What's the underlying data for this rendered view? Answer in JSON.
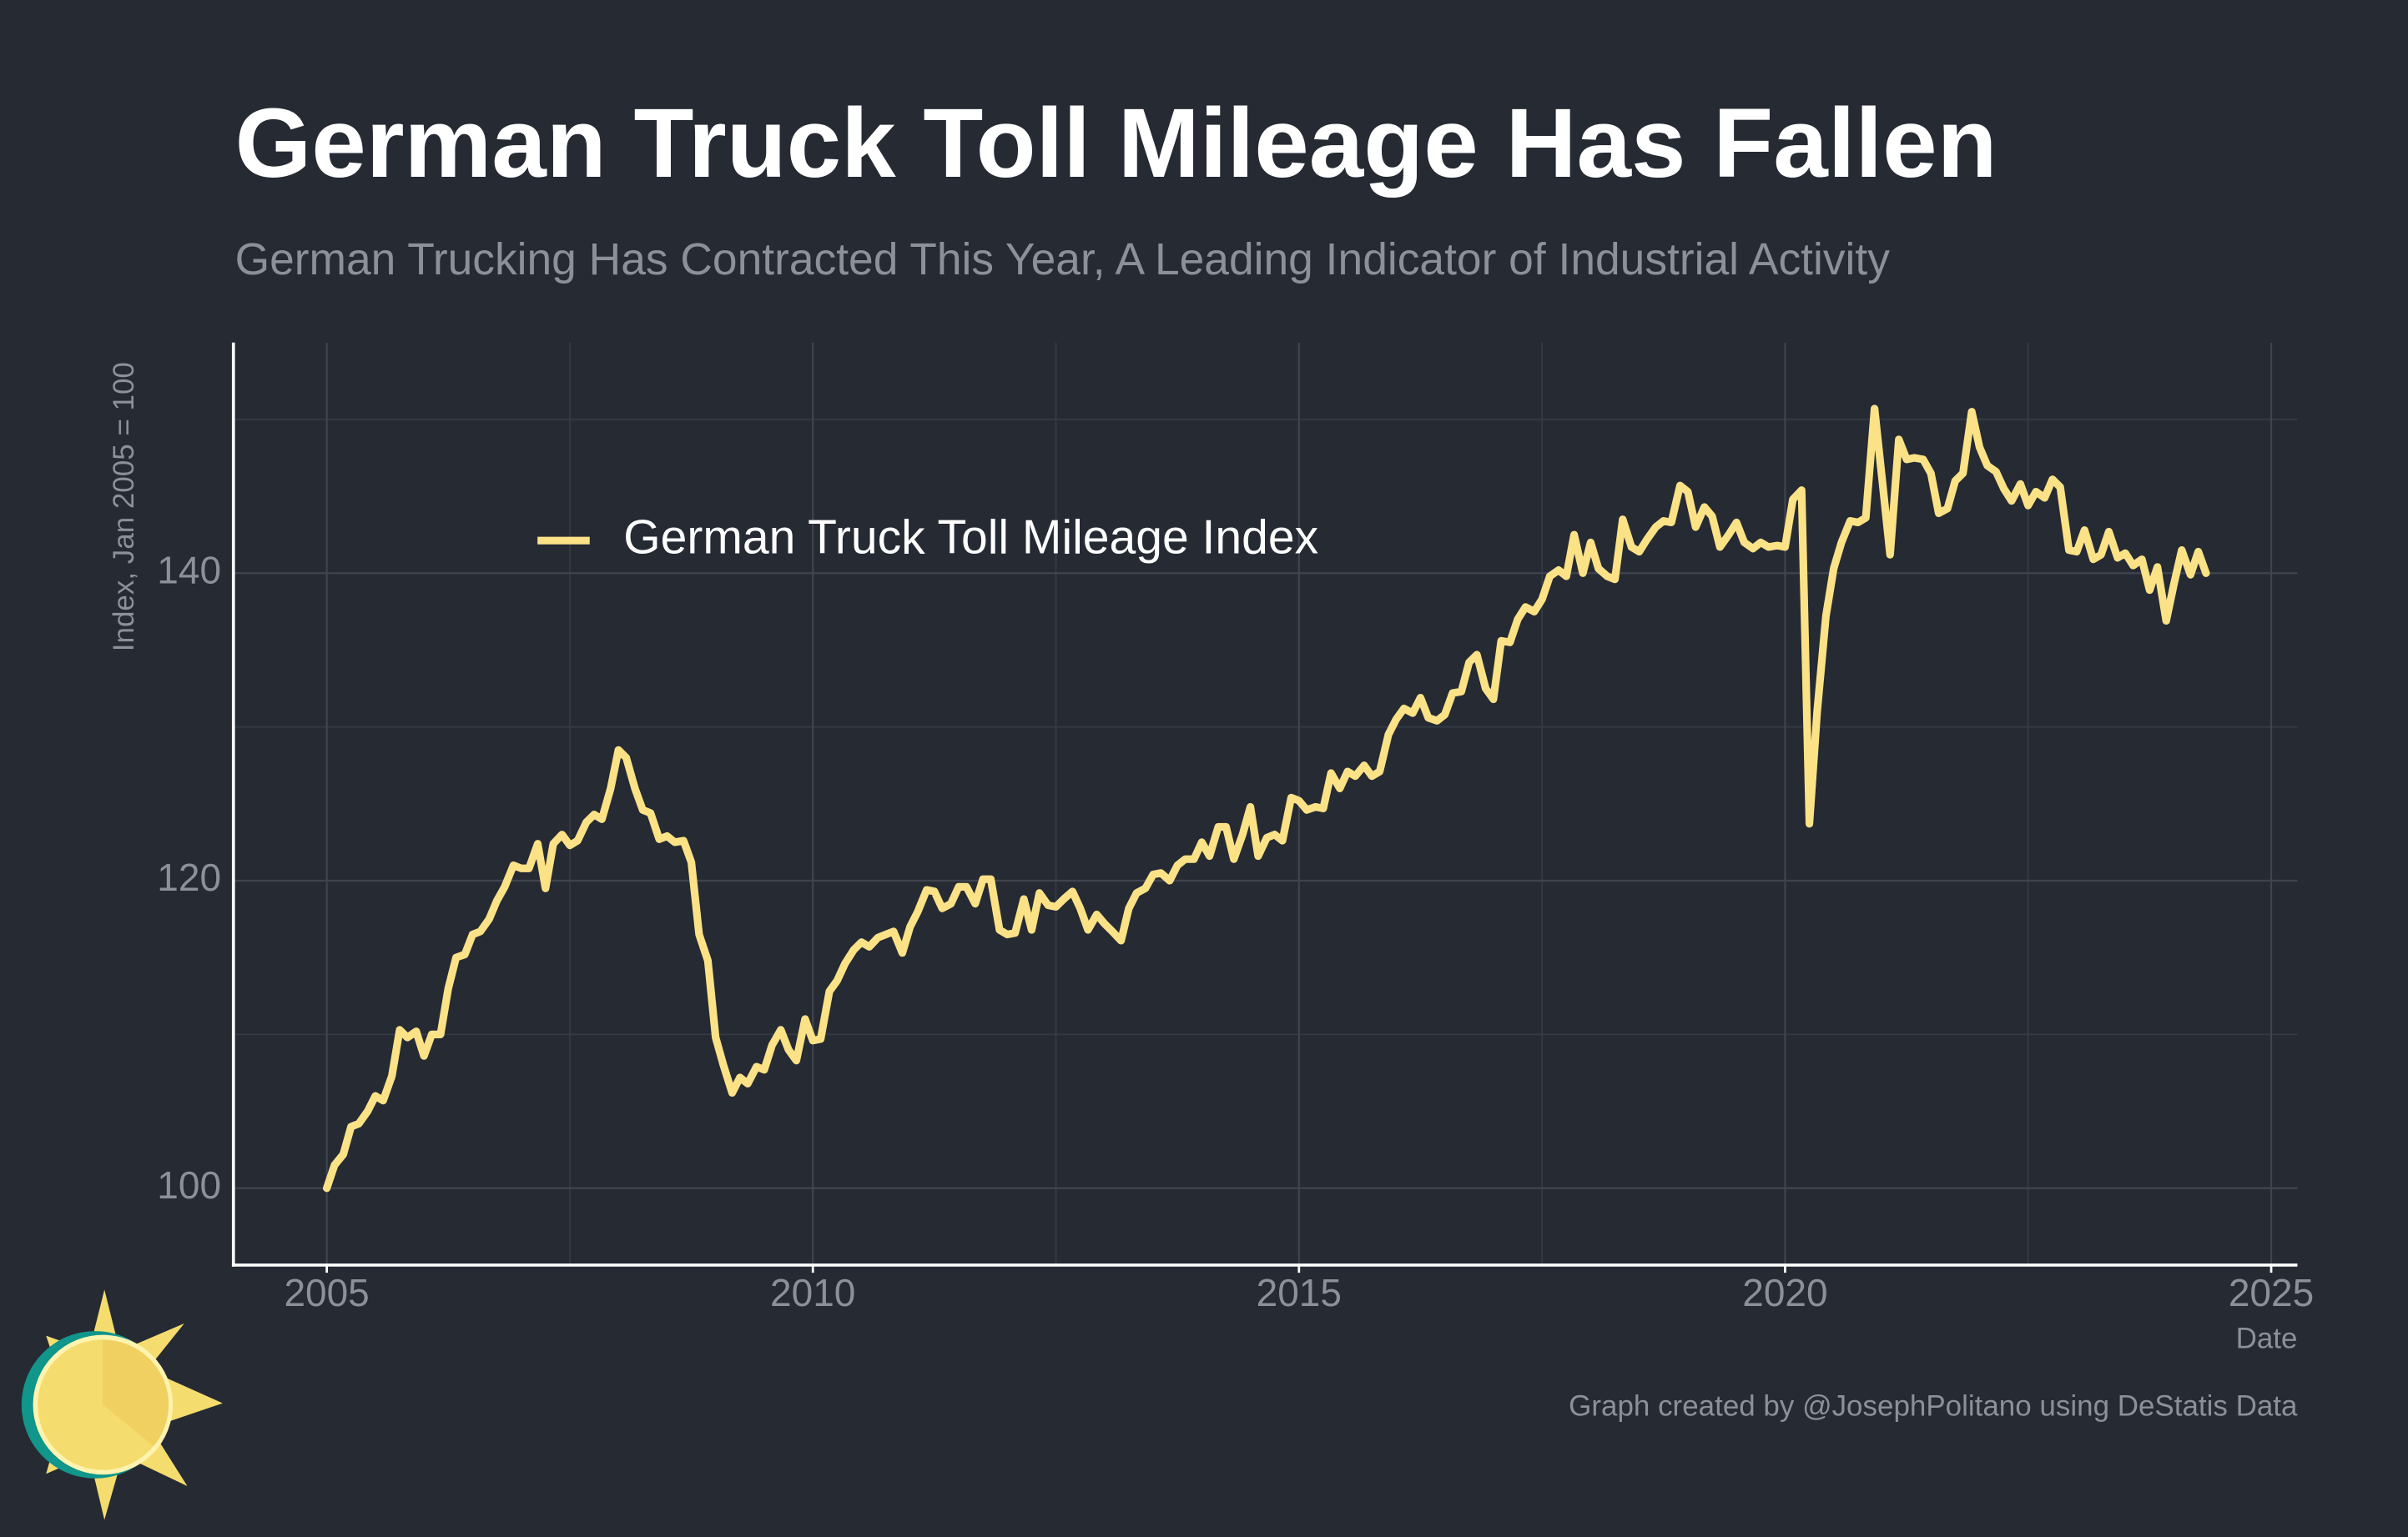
{
  "chart_data": {
    "type": "line",
    "title": "German Truck Toll Mileage Has Fallen",
    "subtitle": "German Trucking Has Contracted This Year, A Leading Indicator of Industrial Activity",
    "y_label": "Index, Jan 2005 = 100",
    "x_label": "Date",
    "caption": "Graph created by @JosephPolitano using DeStatis Data",
    "xlim": [
      2004.04,
      2025.27
    ],
    "ylim": [
      95,
      155
    ],
    "xticks": [
      2005,
      2010,
      2015,
      2020,
      2025
    ],
    "yticks": [
      100,
      120,
      140
    ],
    "x_minor_grid": [
      2007.5,
      2012.5,
      2017.5,
      2022.5
    ],
    "y_minor_grid": [
      110,
      130,
      150
    ],
    "grid": true,
    "legend": "top-left",
    "x": [
      2005.0,
      2005.08,
      2005.17,
      2005.25,
      2005.33,
      2005.42,
      2005.5,
      2005.58,
      2005.67,
      2005.75,
      2005.83,
      2005.92,
      2006.0,
      2006.08,
      2006.17,
      2006.25,
      2006.33,
      2006.42,
      2006.5,
      2006.58,
      2006.67,
      2006.75,
      2006.83,
      2006.92,
      2007.0,
      2007.08,
      2007.17,
      2007.25,
      2007.33,
      2007.42,
      2007.5,
      2007.58,
      2007.67,
      2007.75,
      2007.83,
      2007.92,
      2008.0,
      2008.08,
      2008.17,
      2008.25,
      2008.33,
      2008.42,
      2008.5,
      2008.58,
      2008.67,
      2008.75,
      2008.83,
      2008.92,
      2009.0,
      2009.08,
      2009.17,
      2009.25,
      2009.33,
      2009.42,
      2009.5,
      2009.58,
      2009.67,
      2009.75,
      2009.83,
      2009.92,
      2010.0,
      2010.08,
      2010.17,
      2010.25,
      2010.33,
      2010.42,
      2010.5,
      2010.58,
      2010.67,
      2010.75,
      2010.83,
      2010.92,
      2011.0,
      2011.08,
      2011.17,
      2011.25,
      2011.33,
      2011.42,
      2011.5,
      2011.58,
      2011.67,
      2011.75,
      2011.83,
      2011.92,
      2012.0,
      2012.08,
      2012.17,
      2012.25,
      2012.33,
      2012.42,
      2012.5,
      2012.58,
      2012.67,
      2012.75,
      2012.83,
      2012.92,
      2013.0,
      2013.08,
      2013.17,
      2013.25,
      2013.33,
      2013.42,
      2013.5,
      2013.58,
      2013.67,
      2013.75,
      2013.83,
      2013.92,
      2014.0,
      2014.08,
      2014.17,
      2014.25,
      2014.33,
      2014.42,
      2014.5,
      2014.58,
      2014.67,
      2014.75,
      2014.83,
      2014.92,
      2015.0,
      2015.08,
      2015.17,
      2015.25,
      2015.33,
      2015.42,
      2015.5,
      2015.58,
      2015.67,
      2015.75,
      2015.83,
      2015.92,
      2016.0,
      2016.08,
      2016.17,
      2016.25,
      2016.33,
      2016.42,
      2016.5,
      2016.58,
      2016.67,
      2016.75,
      2016.83,
      2016.92,
      2017.0,
      2017.08,
      2017.17,
      2017.25,
      2017.33,
      2017.42,
      2017.5,
      2017.58,
      2017.67,
      2017.75,
      2017.83,
      2017.92,
      2018.0,
      2018.08,
      2018.17,
      2018.25,
      2018.33,
      2018.42,
      2018.5,
      2018.58,
      2018.67,
      2018.75,
      2018.83,
      2018.92,
      2019.0,
      2019.08,
      2019.17,
      2019.25,
      2019.33,
      2019.42,
      2019.5,
      2019.58,
      2019.67,
      2019.75,
      2019.83,
      2019.92,
      2020.0,
      2020.08,
      2020.17,
      2020.25,
      2020.33,
      2020.42,
      2020.5,
      2020.58,
      2020.67,
      2020.75,
      2020.83,
      2020.92,
      2021.0,
      2021.08,
      2021.17,
      2021.25,
      2021.33,
      2021.42,
      2021.5,
      2021.58,
      2021.67,
      2021.75,
      2021.83,
      2021.92,
      2022.0,
      2022.08,
      2022.17,
      2022.25,
      2022.33,
      2022.42,
      2022.5,
      2022.58,
      2022.67,
      2022.75,
      2022.83,
      2022.92,
      2023.0,
      2023.08,
      2023.17,
      2023.25,
      2023.33,
      2023.42,
      2023.5,
      2023.58,
      2023.67,
      2023.75,
      2023.83,
      2023.92,
      2024.0,
      2024.08,
      2024.17,
      2024.25,
      2024.33
    ],
    "series": [
      {
        "name": "German Truck Toll Mileage Index",
        "color": "#fbe287",
        "values": [
          100,
          101.5,
          102.2,
          104,
          104.2,
          105,
          106,
          105.7,
          107.3,
          110.3,
          109.8,
          110.2,
          108.6,
          110,
          110,
          113,
          115,
          115.2,
          116.5,
          116.7,
          117.5,
          118.7,
          119.6,
          121,
          120.8,
          120.8,
          122.4,
          119.5,
          122.4,
          123,
          122.3,
          122.6,
          123.8,
          124.3,
          124,
          126,
          128.5,
          128,
          126,
          124.6,
          124.4,
          122.7,
          122.9,
          122.5,
          122.6,
          121.2,
          116.5,
          114.8,
          109.8,
          108,
          106.2,
          107.2,
          106.8,
          107.9,
          107.7,
          109.3,
          110.3,
          109,
          108.3,
          111,
          109.6,
          109.7,
          112.8,
          113.5,
          114.6,
          115.5,
          116,
          115.7,
          116.3,
          116.5,
          116.7,
          115.3,
          117,
          118,
          119.4,
          119.3,
          118.2,
          118.5,
          119.6,
          119.6,
          118.5,
          120.1,
          120.1,
          116.8,
          116.5,
          116.6,
          118.8,
          116.8,
          119.2,
          118.4,
          118.3,
          118.8,
          119.3,
          118.2,
          116.8,
          117.8,
          117.2,
          116.7,
          116.1,
          118.2,
          119.2,
          119.5,
          120.4,
          120.5,
          120,
          121,
          121.4,
          121.4,
          122.5,
          121.6,
          123.5,
          123.5,
          121.4,
          123,
          124.8,
          121.6,
          122.8,
          123,
          122.6,
          125.4,
          125.2,
          124.6,
          124.8,
          124.7,
          127,
          126,
          127.1,
          126.8,
          127.5,
          126.8,
          127.1,
          129.5,
          130.5,
          131.2,
          130.9,
          131.9,
          130.6,
          130.4,
          130.8,
          132.2,
          132.3,
          134.2,
          134.7,
          132.5,
          131.8,
          135.6,
          135.5,
          137,
          137.8,
          137.5,
          138.3,
          139.8,
          140.2,
          139.8,
          142.5,
          140,
          142,
          140.3,
          139.8,
          139.6,
          143.5,
          141.7,
          141.4,
          142.2,
          143,
          143.4,
          143.3,
          145.7,
          145.3,
          143,
          144.3,
          143.7,
          141.7,
          142.5,
          143.3,
          142,
          141.6,
          142,
          141.7,
          141.8,
          141.7,
          144.8,
          145.4,
          123.7,
          131,
          137.2,
          140.3,
          142,
          143.4,
          143.3,
          143.6,
          150.7,
          146,
          141.2,
          148.7,
          147.4,
          147.5,
          147.4,
          146.5,
          143.9,
          144.2,
          146,
          146.5,
          150.5,
          148.2,
          147,
          146.6,
          145.5,
          144.7,
          145.8,
          144.4,
          145.3,
          144.9,
          146.1,
          145.6,
          141.5,
          141.4,
          142.8,
          140.9,
          141.2,
          142.7,
          141,
          141.3,
          140.5,
          140.9,
          138.9,
          140.4,
          136.9,
          139.3,
          141.5,
          139.9,
          141.4,
          140
        ]
      }
    ]
  }
}
